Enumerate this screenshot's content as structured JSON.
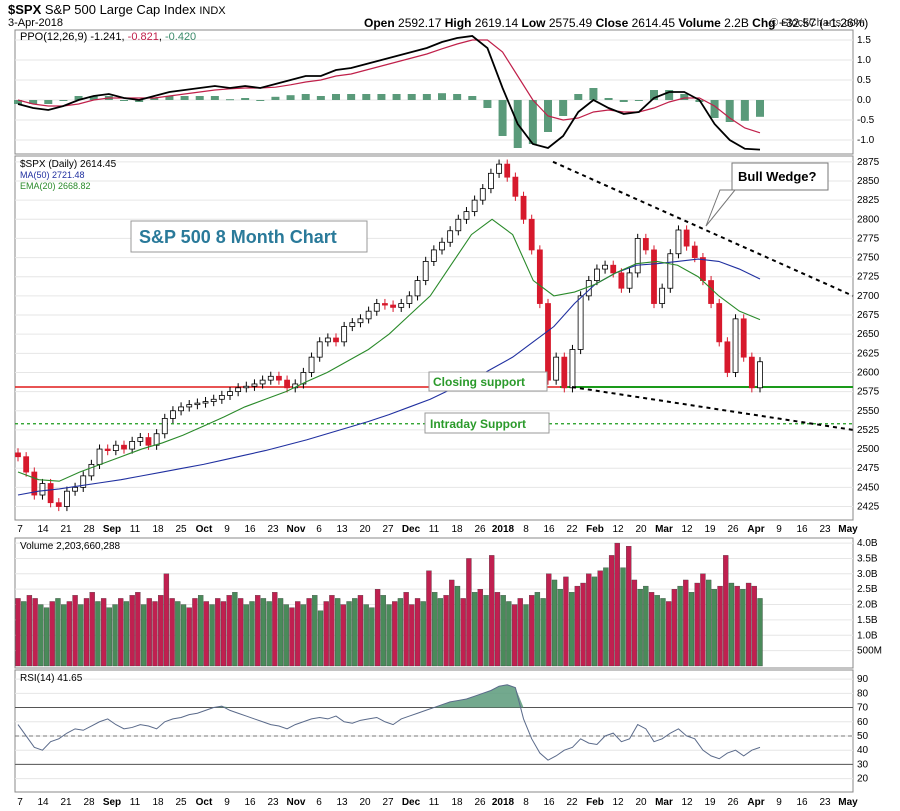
{
  "header": {
    "symbol": "$SPX",
    "name": "S&P 500 Large Cap Index",
    "exchange": "INDX",
    "date": "3-Apr-2018",
    "open_label": "Open",
    "open": "2592.17",
    "high_label": "High",
    "high": "2619.14",
    "low_label": "Low",
    "low": "2575.49",
    "close_label": "Close",
    "close": "2614.45",
    "volume_label": "Volume",
    "volume": "2.2B",
    "chg_label": "Chg",
    "chg": "+32.57 (+1.26%)",
    "watermark": "© StockCharts.com"
  },
  "panels": {
    "ppo": {
      "label": "PPO(12,26,9)",
      "ppo": "-1.241",
      "signal": "-0.821",
      "hist": "-0.420"
    },
    "price": {
      "label": "$SPX (Daily) 2614.45",
      "ma": "MA(50) 2721.48",
      "ema": "EMA(20) 2668.82"
    },
    "volume": {
      "label": "Volume 2,203,660,288"
    },
    "rsi": {
      "label": "RSI(14) 41.65"
    }
  },
  "annotations": {
    "title_box": "S&P 500 8 Month Chart",
    "bull_wedge": "Bull Wedge?",
    "closing_support": "Closing support",
    "intraday_support": "Intraday Support"
  },
  "colors": {
    "up": "#3c8d3c",
    "down": "#d7192c",
    "ma50": "#2030a0",
    "ema20": "#2a8a2a",
    "ppo_line": "#000000",
    "signal_line": "#c0204a",
    "hist": "#5a9a7a",
    "vol_up": "#4a8a5a",
    "vol_down": "#c02050",
    "rsi_fill": "#5a9a7a",
    "support_red": "#e01a1a",
    "support_green": "#1a9a1a",
    "title_text": "#2a7a9a"
  },
  "x_axis_labels": [
    "7",
    "14",
    "21",
    "28",
    "Sep",
    "11",
    "18",
    "25",
    "Oct",
    "9",
    "16",
    "23",
    "Nov",
    "6",
    "13",
    "20",
    "27",
    "Dec",
    "11",
    "18",
    "26",
    "2018",
    "8",
    "16",
    "22",
    "Feb",
    "12",
    "20",
    "Mar",
    "12",
    "19",
    "26",
    "Apr",
    "9",
    "16",
    "23",
    "May"
  ],
  "chart_data": [
    {
      "type": "line",
      "title": "PPO(12,26,9)",
      "yticks": [
        "1.5",
        "1.0",
        "0.5",
        "0.0",
        "-0.5",
        "-1.0"
      ],
      "ylim": [
        -1.3,
        1.7
      ],
      "series": [
        {
          "name": "PPO",
          "values": [
            -0.1,
            -0.2,
            -0.25,
            -0.15,
            0.0,
            0.1,
            0.15,
            0.05,
            0.0,
            0.1,
            0.2,
            0.25,
            0.3,
            0.35,
            0.3,
            0.35,
            0.3,
            0.4,
            0.5,
            0.6,
            0.6,
            0.75,
            0.8,
            0.9,
            1.0,
            1.1,
            1.2,
            1.3,
            1.45,
            1.55,
            1.6,
            1.3,
            0.3,
            -0.6,
            -1.1,
            -1.2,
            -0.9,
            -0.3,
            0.0,
            -0.2,
            -0.35,
            -0.3,
            0.05,
            0.2,
            0.2,
            0.0,
            -0.6,
            -1.0,
            -1.22,
            -1.24
          ]
        },
        {
          "name": "Signal",
          "values": [
            0.0,
            -0.1,
            -0.15,
            -0.15,
            -0.1,
            0.0,
            0.05,
            0.05,
            0.05,
            0.05,
            0.1,
            0.15,
            0.2,
            0.25,
            0.28,
            0.3,
            0.3,
            0.32,
            0.38,
            0.45,
            0.5,
            0.6,
            0.65,
            0.75,
            0.85,
            0.95,
            1.05,
            1.15,
            1.28,
            1.4,
            1.5,
            1.5,
            1.2,
            0.6,
            0.0,
            -0.4,
            -0.5,
            -0.45,
            -0.3,
            -0.25,
            -0.3,
            -0.3,
            -0.2,
            -0.05,
            0.05,
            0.05,
            -0.15,
            -0.45,
            -0.7,
            -0.82
          ]
        }
      ]
    },
    {
      "type": "candlestick",
      "title": "$SPX (Daily) 2614.45",
      "yticks": [
        "2875",
        "2850",
        "2825",
        "2800",
        "2775",
        "2750",
        "2725",
        "2700",
        "2675",
        "2650",
        "2625",
        "2600",
        "2575",
        "2550",
        "2525",
        "2500",
        "2475",
        "2450",
        "2425"
      ],
      "ylim": [
        2410,
        2880
      ],
      "close": [
        2490,
        2470,
        2440,
        2455,
        2430,
        2425,
        2445,
        2450,
        2465,
        2480,
        2500,
        2498,
        2505,
        2500,
        2510,
        2515,
        2505,
        2520,
        2540,
        2550,
        2555,
        2558,
        2560,
        2562,
        2565,
        2570,
        2575,
        2580,
        2582,
        2585,
        2590,
        2595,
        2590,
        2580,
        2585,
        2600,
        2620,
        2640,
        2645,
        2640,
        2660,
        2665,
        2670,
        2680,
        2690,
        2688,
        2685,
        2690,
        2700,
        2720,
        2745,
        2760,
        2770,
        2785,
        2800,
        2810,
        2825,
        2840,
        2860,
        2872,
        2855,
        2830,
        2800,
        2760,
        2690,
        2590,
        2620,
        2580,
        2630,
        2700,
        2720,
        2735,
        2740,
        2730,
        2710,
        2730,
        2775,
        2760,
        2690,
        2710,
        2755,
        2786,
        2765,
        2750,
        2720,
        2690,
        2640,
        2600,
        2670,
        2620,
        2580,
        2614
      ],
      "series": [
        {
          "name": "MA(50)",
          "values": [
            2440,
            2445,
            2448,
            2452,
            2456,
            2460,
            2465,
            2470,
            2475,
            2480,
            2486,
            2492,
            2498,
            2505,
            2512,
            2520,
            2528,
            2536,
            2545,
            2555,
            2565,
            2578,
            2590,
            2605,
            2620,
            2640,
            2660,
            2690,
            2715,
            2730,
            2740,
            2742,
            2745,
            2748,
            2745,
            2735,
            2722
          ]
        },
        {
          "name": "EMA(20)",
          "values": [
            2470,
            2460,
            2458,
            2470,
            2480,
            2490,
            2500,
            2508,
            2518,
            2530,
            2542,
            2555,
            2565,
            2575,
            2588,
            2600,
            2615,
            2630,
            2650,
            2675,
            2700,
            2740,
            2780,
            2800,
            2780,
            2720,
            2700,
            2705,
            2715,
            2730,
            2742,
            2745,
            2740,
            2725,
            2700,
            2680,
            2669
          ]
        }
      ],
      "annotations": [
        "S&P 500 8 Month Chart",
        "Bull Wedge?",
        "Closing support",
        "Intraday Support"
      ],
      "support_levels": [
        2581,
        2533
      ]
    },
    {
      "type": "bar",
      "title": "Volume 2,203,660,288",
      "yticks": [
        "4.0B",
        "3.5B",
        "3.0B",
        "2.5B",
        "2.0B",
        "1.5B",
        "1.0B",
        "500M"
      ],
      "ylim": [
        0,
        4.1
      ],
      "values": [
        2.2,
        2.1,
        2.3,
        2.2,
        2.0,
        1.9,
        2.1,
        2.2,
        2.0,
        2.1,
        2.3,
        2.0,
        2.2,
        2.4,
        2.1,
        2.2,
        1.9,
        2.0,
        2.2,
        2.1,
        2.3,
        2.4,
        2.0,
        2.2,
        2.1,
        2.3,
        3.0,
        2.2,
        2.1,
        2.0,
        1.9,
        2.2,
        2.3,
        2.1,
        2.0,
        2.2,
        2.1,
        2.3,
        2.4,
        2.2,
        2.0,
        2.1,
        2.3,
        2.2,
        2.1,
        2.4,
        2.2,
        2.0,
        1.9,
        2.1,
        2.0,
        2.2,
        2.3,
        1.8,
        2.1,
        2.3,
        2.2,
        2.0,
        2.1,
        2.2,
        2.3,
        2.0,
        1.9,
        2.5,
        2.3,
        2.0,
        2.1,
        2.2,
        2.4,
        2.0,
        2.2,
        2.1,
        3.1,
        2.4,
        2.2,
        2.3,
        2.8,
        2.6,
        2.2,
        3.5,
        2.4,
        2.5,
        2.3,
        3.6,
        2.4,
        2.3,
        2.1,
        2.0,
        2.2,
        2.0,
        2.3,
        2.4,
        2.2,
        3.0,
        2.8,
        2.5,
        2.9,
        2.4,
        2.6,
        2.7,
        3.0,
        2.9,
        3.1,
        3.2,
        3.6,
        4.0,
        3.2,
        3.9,
        2.8,
        2.5,
        2.6,
        2.4,
        2.3,
        2.2,
        2.1,
        2.5,
        2.6,
        2.8,
        2.4,
        2.7,
        3.0,
        2.8,
        2.5,
        2.6,
        3.6,
        2.7,
        2.6,
        2.5,
        2.7,
        2.6,
        2.2
      ]
    },
    {
      "type": "area",
      "title": "RSI(14) 41.65",
      "yticks": [
        "90",
        "80",
        "70",
        "60",
        "50",
        "40",
        "30",
        "20"
      ],
      "ylim": [
        12,
        95
      ],
      "values": [
        58,
        50,
        42,
        40,
        46,
        48,
        52,
        55,
        54,
        57,
        60,
        62,
        58,
        55,
        56,
        58,
        57,
        55,
        60,
        62,
        63,
        65,
        66,
        68,
        70,
        71,
        68,
        66,
        64,
        62,
        60,
        58,
        57,
        55,
        58,
        60,
        62,
        63,
        62,
        64,
        60,
        59,
        61,
        62,
        63,
        60,
        58,
        62,
        64,
        66,
        68,
        70,
        72,
        74,
        75,
        76,
        78,
        80,
        82,
        85,
        86,
        84,
        62,
        48,
        38,
        33,
        36,
        40,
        42,
        48,
        45,
        44,
        50,
        52,
        46,
        48,
        58,
        55,
        46,
        48,
        52,
        55,
        50,
        48,
        40,
        36,
        34,
        38,
        40,
        36,
        40,
        42
      ]
    }
  ]
}
